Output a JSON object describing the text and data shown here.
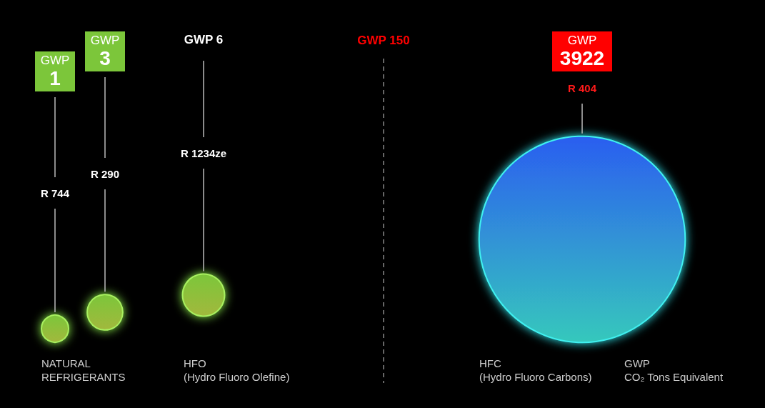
{
  "chart_data": {
    "type": "other",
    "categories": [
      "R 744",
      "R 290",
      "R 1234ze",
      "R 404"
    ],
    "values": [
      1,
      3,
      6,
      3922
    ],
    "value_labels": [
      "GWP\n1",
      "GWP\n3",
      "GWP 6",
      "GWP\n3922"
    ],
    "colors": [
      "#7cc63a",
      "#7cc63a",
      "#7cc63a",
      "#ff0000"
    ],
    "annotations": [
      "GWP 150",
      "NATURAL\nREFRIGERANTS",
      "HFO\n(Hydro Fluoro Olefine)",
      "HFC\n(Hydro Fluoro Carbons)",
      "GWP\nCO₂ Tons Equivalent"
    ]
  }
}
